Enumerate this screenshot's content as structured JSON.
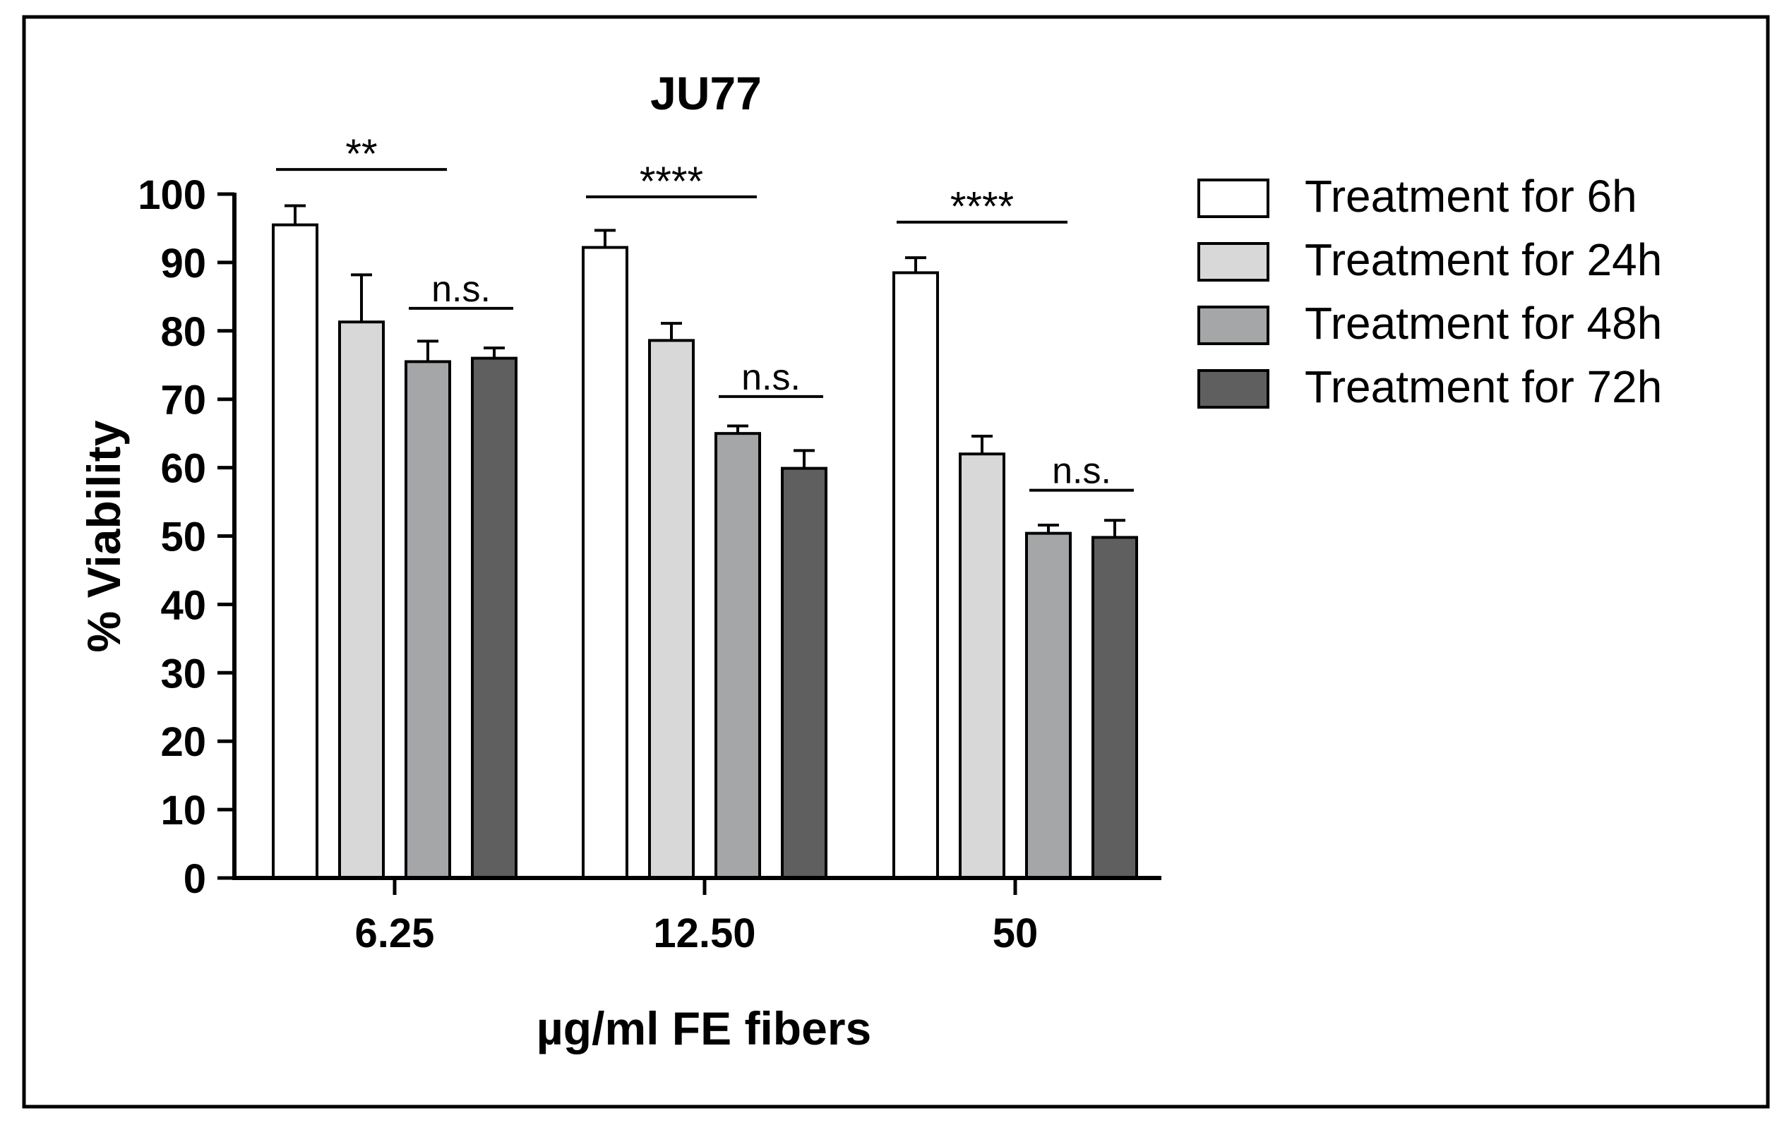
{
  "chart_data": {
    "type": "bar",
    "title": "JU77",
    "xlabel": "µg/ml FE fibers",
    "ylabel": "% Viability",
    "ylim": [
      0,
      100
    ],
    "yticks": [
      0,
      10,
      20,
      30,
      40,
      50,
      60,
      70,
      80,
      90,
      100
    ],
    "grid": false,
    "legend_position": "top-right",
    "categories": [
      "6.25",
      "12.50",
      "50"
    ],
    "series": [
      {
        "name": "Treatment for 6h",
        "color": "#ffffff",
        "values": [
          95.5,
          92.2,
          88.5
        ],
        "errors": [
          2.8,
          2.5,
          2.2
        ]
      },
      {
        "name": "Treatment for 24h",
        "color": "#d8d8d8",
        "values": [
          81.3,
          78.6,
          62.0
        ],
        "errors": [
          6.9,
          2.5,
          2.6
        ]
      },
      {
        "name": "Treatment for 48h",
        "color": "#a5a6a8",
        "values": [
          75.5,
          65.0,
          50.4
        ],
        "errors": [
          3.0,
          1.1,
          1.2
        ]
      },
      {
        "name": "Treatment for 72h",
        "color": "#5f5f5f",
        "values": [
          76.0,
          59.9,
          49.8
        ],
        "errors": [
          1.5,
          2.6,
          2.5
        ]
      }
    ],
    "annotations": [
      {
        "category_index": 0,
        "from_series": 0,
        "to_series": 2,
        "text": "**",
        "level": 103.6,
        "underline": false
      },
      {
        "category_index": 0,
        "from_series": 2,
        "to_series": 3,
        "text": "n.s.",
        "level": 83.3,
        "underline": true
      },
      {
        "category_index": 1,
        "from_series": 0,
        "to_series": 2,
        "text": "****",
        "level": 99.6,
        "underline": false
      },
      {
        "category_index": 1,
        "from_series": 2,
        "to_series": 3,
        "text": "n.s.",
        "level": 70.4,
        "underline": true
      },
      {
        "category_index": 2,
        "from_series": 0,
        "to_series": 2,
        "text": "****",
        "level": 95.9,
        "underline": false
      },
      {
        "category_index": 2,
        "from_series": 2,
        "to_series": 3,
        "text": "n.s.",
        "level": 56.7,
        "underline": true
      }
    ]
  }
}
